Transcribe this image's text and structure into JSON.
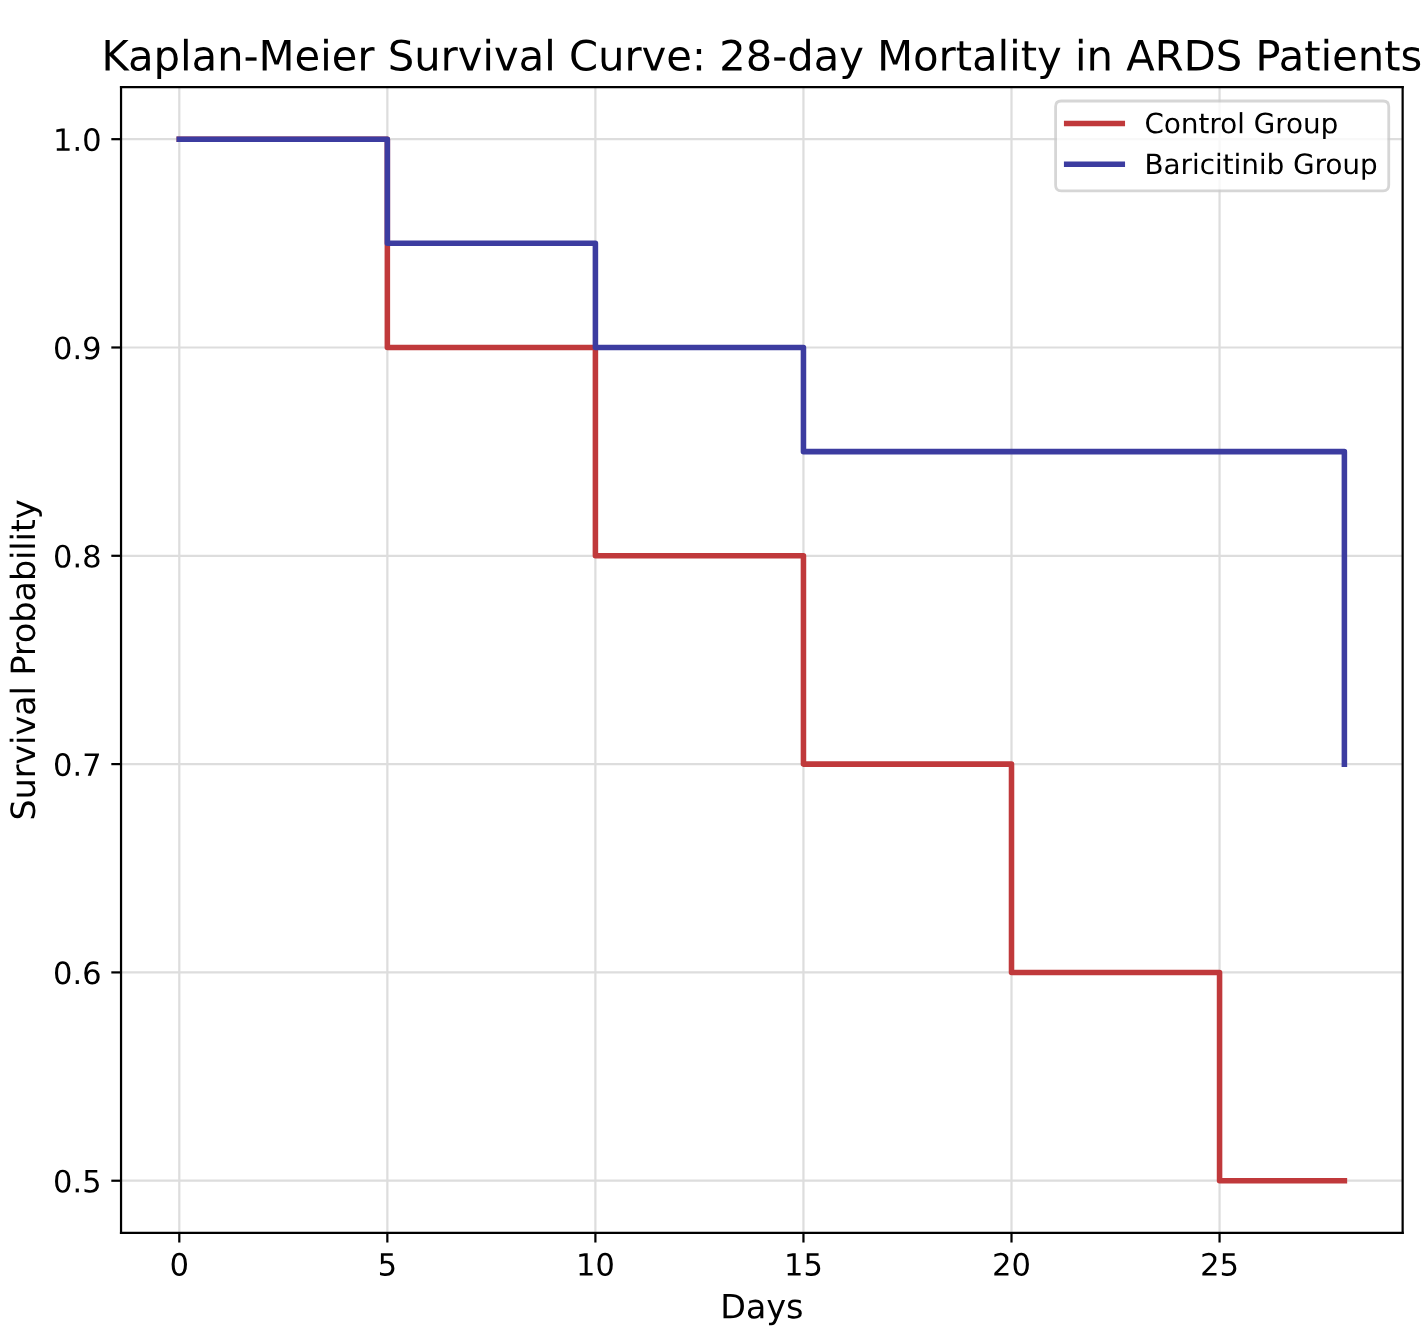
{
  "chart_data": {
    "type": "step",
    "title": "Kaplan-Meier Survival Curve: 28-day Mortality in ARDS Patients",
    "xlabel": "Days",
    "ylabel": "Survival Probability",
    "series": [
      {
        "name": "Control Group",
        "color": "#c0393b",
        "x": [
          0,
          5,
          10,
          15,
          20,
          25,
          28
        ],
        "values": [
          1.0,
          0.9,
          0.8,
          0.7,
          0.6,
          0.5,
          0.5
        ]
      },
      {
        "name": "Baricitinib Group",
        "color": "#3c3ca0",
        "x": [
          0,
          5,
          10,
          15,
          28
        ],
        "values": [
          1.0,
          0.95,
          0.9,
          0.85,
          0.7
        ]
      }
    ],
    "xlim": [
      -1.4,
      29.4
    ],
    "ylim": [
      0.475,
      1.025
    ],
    "xticks": [
      0,
      5,
      10,
      15,
      20,
      25
    ],
    "yticks": [
      {
        "value": 0.5,
        "label": "0.5"
      },
      {
        "value": 0.6,
        "label": "0.6"
      },
      {
        "value": 0.7,
        "label": "0.7"
      },
      {
        "value": 0.8,
        "label": "0.8"
      },
      {
        "value": 0.9,
        "label": "0.9"
      },
      {
        "value": 1.0,
        "label": "1.0"
      }
    ],
    "grid": true,
    "legend": "top right",
    "line_style": "solid"
  }
}
